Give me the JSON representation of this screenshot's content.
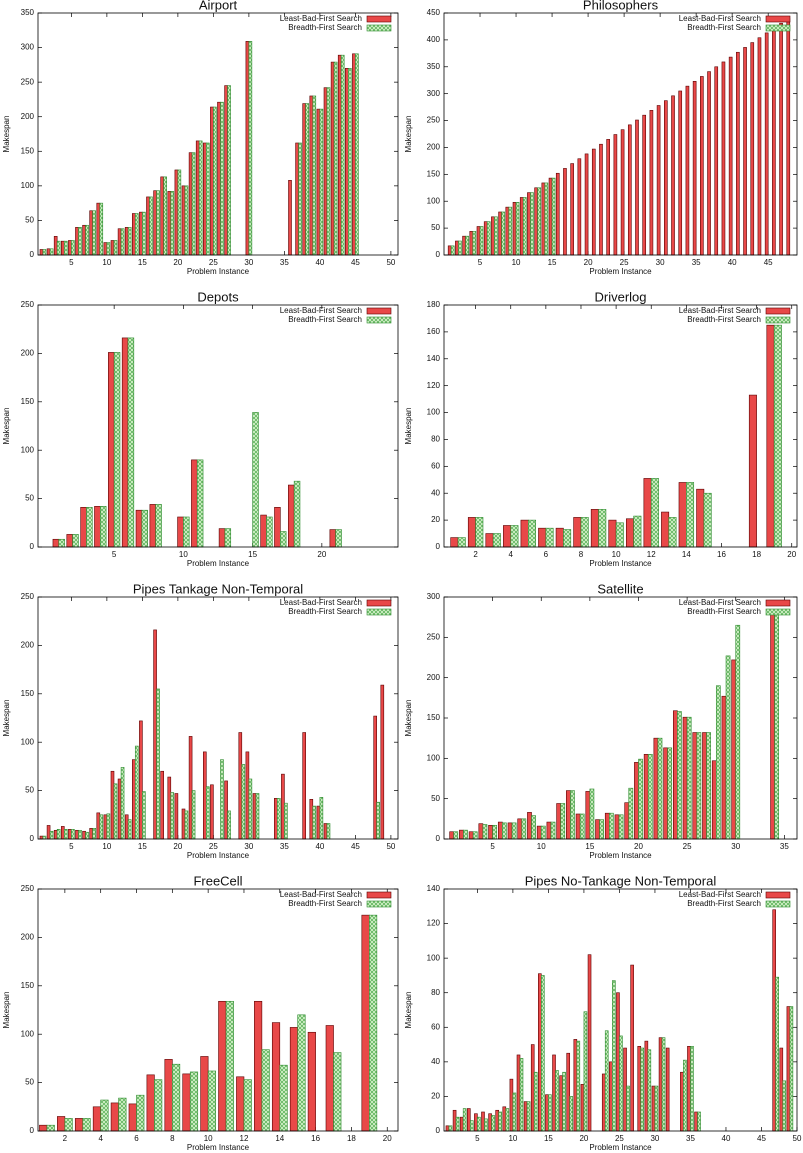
{
  "chart_data": [
    {
      "type": "bar",
      "title": "Airport",
      "xlabel": "Problem Instance",
      "ylabel": "Makespan",
      "x": [
        1,
        2,
        3,
        4,
        5,
        6,
        7,
        8,
        9,
        10,
        11,
        12,
        13,
        14,
        15,
        16,
        17,
        18,
        19,
        20,
        21,
        22,
        23,
        24,
        25,
        26,
        27,
        28,
        29,
        30,
        31,
        32,
        33,
        34,
        35,
        36,
        37,
        38,
        39,
        40,
        41,
        42,
        43,
        44,
        45
      ],
      "series": [
        {
          "name": "Least-Bad-First Search",
          "color": "#e84848",
          "values": [
            8,
            9,
            27,
            20,
            21,
            40,
            43,
            64,
            75,
            18,
            21,
            38,
            40,
            60,
            62,
            84,
            93,
            113,
            92,
            123,
            100,
            148,
            165,
            162,
            214,
            221,
            245,
            null,
            null,
            309,
            null,
            null,
            null,
            null,
            null,
            108,
            162,
            219,
            230,
            211,
            242,
            279,
            289,
            270,
            291
          ]
        },
        {
          "name": "Breadth-First Search",
          "color": "#d2f0c8",
          "values": [
            8,
            9,
            20,
            20,
            21,
            40,
            43,
            64,
            75,
            18,
            21,
            38,
            40,
            60,
            62,
            84,
            93,
            113,
            92,
            123,
            100,
            148,
            165,
            162,
            214,
            221,
            245,
            null,
            null,
            309,
            null,
            null,
            null,
            null,
            null,
            null,
            162,
            219,
            230,
            211,
            242,
            279,
            289,
            270,
            291
          ]
        }
      ],
      "xlim": [
        0.3,
        51
      ],
      "ylim": [
        0,
        350
      ],
      "xticks": [
        5,
        10,
        15,
        20,
        25,
        30,
        35,
        40,
        45,
        50
      ],
      "yticks": [
        0,
        50,
        100,
        150,
        200,
        250,
        300,
        350
      ],
      "legend": "upper right"
    },
    {
      "type": "bar",
      "title": "Philosophers",
      "xlabel": "Problem Instance",
      "ylabel": "Makespan",
      "x": [
        1,
        2,
        3,
        4,
        5,
        6,
        7,
        8,
        9,
        10,
        11,
        12,
        13,
        14,
        15,
        16,
        17,
        18,
        19,
        20,
        21,
        22,
        23,
        24,
        25,
        26,
        27,
        28,
        29,
        30,
        31,
        32,
        33,
        34,
        35,
        36,
        37,
        38,
        39,
        40,
        41,
        42,
        43,
        44,
        45,
        46,
        47,
        48
      ],
      "series": [
        {
          "name": "Least-Bad-First Search",
          "color": "#e84848",
          "values": [
            17,
            26,
            35,
            44,
            53,
            62,
            71,
            80,
            89,
            98,
            107,
            116,
            125,
            134,
            143,
            152,
            161,
            170,
            179,
            188,
            197,
            206,
            215,
            224,
            233,
            242,
            251,
            260,
            269,
            278,
            287,
            296,
            305,
            314,
            323,
            332,
            341,
            350,
            359,
            368,
            377,
            386,
            395,
            404,
            413,
            422,
            431,
            440
          ]
        },
        {
          "name": "Breadth-First Search",
          "color": "#d2f0c8",
          "values": [
            17,
            26,
            35,
            44,
            53,
            62,
            71,
            80,
            89,
            98,
            107,
            116,
            125,
            134,
            143,
            null,
            null,
            null,
            null,
            null,
            null,
            null,
            null,
            null,
            null,
            null,
            null,
            null,
            null,
            null,
            null,
            null,
            null,
            null,
            null,
            null,
            null,
            null,
            null,
            null,
            null,
            null,
            null,
            null,
            null,
            null,
            null,
            null
          ]
        }
      ],
      "xlim": [
        0,
        49
      ],
      "ylim": [
        0,
        450
      ],
      "xticks": [
        5,
        10,
        15,
        20,
        25,
        30,
        35,
        40,
        45
      ],
      "yticks": [
        0,
        50,
        100,
        150,
        200,
        250,
        300,
        350,
        400,
        450
      ],
      "legend": "upper right"
    },
    {
      "type": "bar",
      "title": "Depots",
      "xlabel": "Problem Instance",
      "ylabel": "Makespan",
      "x": [
        1,
        2,
        3,
        4,
        5,
        6,
        7,
        8,
        9,
        10,
        11,
        12,
        13,
        14,
        15,
        16,
        17,
        18,
        19,
        20,
        21
      ],
      "series": [
        {
          "name": "Least-Bad-First Search",
          "color": "#e84848",
          "values": [
            8,
            13,
            41,
            42,
            201,
            216,
            38,
            44,
            null,
            31,
            90,
            null,
            19,
            null,
            null,
            33,
            41,
            64,
            null,
            null,
            18
          ]
        },
        {
          "name": "Breadth-First Search",
          "color": "#d2f0c8",
          "values": [
            8,
            13,
            41,
            42,
            201,
            216,
            38,
            44,
            null,
            31,
            90,
            null,
            19,
            null,
            139,
            31,
            16,
            68,
            null,
            null,
            18
          ]
        }
      ],
      "xlim": [
        -0.5,
        25.5
      ],
      "ylim": [
        0,
        250
      ],
      "xticks": [
        5,
        10,
        15,
        20
      ],
      "yticks": [
        0,
        50,
        100,
        150,
        200,
        250
      ],
      "legend": "upper right"
    },
    {
      "type": "bar",
      "title": "Driverlog",
      "xlabel": "Problem Instance",
      "ylabel": "Makespan",
      "x": [
        1,
        2,
        3,
        4,
        5,
        6,
        7,
        8,
        9,
        10,
        11,
        12,
        13,
        14,
        15,
        16,
        17,
        18,
        19
      ],
      "series": [
        {
          "name": "Least-Bad-First Search",
          "color": "#e84848",
          "values": [
            7,
            22,
            10,
            16,
            20,
            14,
            14,
            22,
            28,
            20,
            21,
            51,
            26,
            48,
            43,
            null,
            null,
            113,
            165
          ]
        },
        {
          "name": "Breadth-First Search",
          "color": "#d2f0c8",
          "values": [
            7,
            22,
            10,
            16,
            20,
            14,
            13,
            22,
            28,
            18,
            23,
            51,
            22,
            48,
            40,
            null,
            null,
            null,
            165
          ]
        }
      ],
      "xlim": [
        0.2,
        20.3
      ],
      "ylim": [
        0,
        180
      ],
      "xticks": [
        2,
        4,
        6,
        8,
        10,
        12,
        14,
        16,
        18,
        20
      ],
      "yticks": [
        0,
        20,
        40,
        60,
        80,
        100,
        120,
        140,
        160,
        180
      ],
      "legend": "upper right"
    },
    {
      "type": "bar",
      "title": "Pipes Tankage Non-Temporal",
      "xlabel": "Problem Instance",
      "ylabel": "Makespan",
      "x": [
        1,
        2,
        3,
        4,
        5,
        6,
        7,
        8,
        9,
        10,
        11,
        12,
        13,
        14,
        15,
        16,
        17,
        18,
        19,
        20,
        21,
        22,
        23,
        24,
        25,
        26,
        27,
        28,
        29,
        30,
        31,
        32,
        33,
        34,
        35,
        36,
        37,
        38,
        39,
        40,
        41,
        42,
        43,
        44,
        45,
        46,
        47,
        48,
        49
      ],
      "series": [
        {
          "name": "Least-Bad-First Search",
          "color": "#e84848",
          "values": [
            3,
            14,
            9,
            13,
            10,
            9,
            8,
            11,
            27,
            25,
            70,
            62,
            25,
            82,
            122,
            null,
            216,
            70,
            64,
            47,
            31,
            106,
            null,
            90,
            56,
            null,
            60,
            null,
            110,
            90,
            47,
            null,
            null,
            42,
            67,
            null,
            null,
            110,
            41,
            34,
            16,
            null,
            null,
            null,
            null,
            null,
            null,
            127,
            159
          ]
        },
        {
          "name": "Breadth-First Search",
          "color": "#d2f0c8",
          "values": [
            3,
            8,
            10,
            10,
            10,
            9,
            7,
            11,
            25,
            26,
            57,
            74,
            20,
            96,
            49,
            null,
            155,
            null,
            48,
            null,
            29,
            50,
            null,
            54,
            null,
            82,
            29,
            null,
            77,
            62,
            47,
            null,
            null,
            42,
            37,
            null,
            null,
            null,
            34,
            43,
            16,
            null,
            null,
            null,
            null,
            null,
            null,
            38,
            null
          ]
        }
      ],
      "xlim": [
        0.3,
        51
      ],
      "ylim": [
        0,
        250
      ],
      "xticks": [
        5,
        10,
        15,
        20,
        25,
        30,
        35,
        40,
        45,
        50
      ],
      "yticks": [
        0,
        50,
        100,
        150,
        200,
        250
      ],
      "legend": "upper right"
    },
    {
      "type": "bar",
      "title": "Satellite",
      "xlabel": "Problem Instance",
      "ylabel": "Makespan",
      "x": [
        1,
        2,
        3,
        4,
        5,
        6,
        7,
        8,
        9,
        10,
        11,
        12,
        13,
        14,
        15,
        16,
        17,
        18,
        19,
        20,
        21,
        22,
        23,
        24,
        25,
        26,
        27,
        28,
        29,
        30,
        31,
        32,
        33,
        34
      ],
      "series": [
        {
          "name": "Least-Bad-First Search",
          "color": "#e84848",
          "values": [
            9,
            11,
            9,
            19,
            17,
            21,
            20,
            25,
            33,
            16,
            21,
            44,
            60,
            31,
            59,
            24,
            32,
            30,
            45,
            95,
            105,
            125,
            113,
            159,
            151,
            132,
            132,
            97,
            177,
            222,
            null,
            null,
            null,
            280
          ]
        },
        {
          "name": "Breadth-First Search",
          "color": "#d2f0c8",
          "values": [
            9,
            11,
            9,
            18,
            17,
            20,
            20,
            25,
            29,
            16,
            21,
            44,
            60,
            31,
            62,
            24,
            32,
            30,
            63,
            99,
            105,
            125,
            113,
            158,
            151,
            132,
            132,
            190,
            227,
            265,
            null,
            null,
            null,
            283
          ]
        }
      ],
      "xlim": [
        0,
        36.3
      ],
      "ylim": [
        0,
        300
      ],
      "xticks": [
        5,
        10,
        15,
        20,
        25,
        30,
        35
      ],
      "yticks": [
        0,
        50,
        100,
        150,
        200,
        250,
        300
      ],
      "legend": "upper right"
    },
    {
      "type": "bar",
      "title": "FreeCell",
      "xlabel": "Problem Instance",
      "ylabel": "Makespan",
      "x": [
        1,
        2,
        3,
        4,
        5,
        6,
        7,
        8,
        9,
        10,
        11,
        12,
        13,
        14,
        15,
        16,
        17,
        18,
        19
      ],
      "series": [
        {
          "name": "Least-Bad-First Search",
          "color": "#e84848",
          "values": [
            6,
            15,
            13,
            25,
            29,
            28,
            58,
            74,
            59,
            77,
            134,
            56,
            134,
            112,
            107,
            102,
            109,
            null,
            223
          ]
        },
        {
          "name": "Breadth-First Search",
          "color": "#d2f0c8",
          "values": [
            6,
            13,
            13,
            32,
            34,
            37,
            53,
            69,
            61,
            62,
            134,
            53,
            84,
            68,
            120,
            null,
            81,
            null,
            223
          ]
        }
      ],
      "xlim": [
        0.5,
        20.6
      ],
      "ylim": [
        0,
        250
      ],
      "xticks": [
        2,
        4,
        6,
        8,
        10,
        12,
        14,
        16,
        18,
        20
      ],
      "yticks": [
        0,
        50,
        100,
        150,
        200,
        250
      ],
      "legend": "upper right"
    },
    {
      "type": "bar",
      "title": "Pipes No-Tankage Non-Temporal",
      "xlabel": "Problem Instance",
      "ylabel": "Makespan",
      "x": [
        1,
        2,
        3,
        4,
        5,
        6,
        7,
        8,
        9,
        10,
        11,
        12,
        13,
        14,
        15,
        16,
        17,
        18,
        19,
        20,
        21,
        22,
        23,
        24,
        25,
        26,
        27,
        28,
        29,
        30,
        31,
        32,
        33,
        34,
        35,
        36,
        37,
        38,
        39,
        40,
        41,
        42,
        43,
        44,
        45,
        46,
        47,
        48,
        49
      ],
      "series": [
        {
          "name": "Least-Bad-First Search",
          "color": "#e84848",
          "values": [
            3,
            12,
            8,
            13,
            10,
            11,
            10,
            12,
            14,
            30,
            44,
            17,
            50,
            91,
            21,
            44,
            32,
            45,
            53,
            27,
            102,
            null,
            33,
            40,
            80,
            48,
            96,
            49,
            52,
            26,
            54,
            48,
            null,
            34,
            49,
            11,
            null,
            null,
            null,
            null,
            null,
            null,
            null,
            null,
            null,
            null,
            128,
            48,
            72
          ]
        },
        {
          "name": "Breadth-First Search",
          "color": "#d2f0c8",
          "values": [
            3,
            8,
            13,
            6,
            8,
            7,
            9,
            11,
            13,
            22,
            42,
            17,
            34,
            90,
            21,
            35,
            34,
            20,
            52,
            69,
            null,
            null,
            58,
            87,
            55,
            26,
            null,
            48,
            47,
            26,
            54,
            null,
            null,
            41,
            49,
            11,
            null,
            null,
            null,
            null,
            null,
            null,
            null,
            null,
            null,
            null,
            89,
            29,
            72
          ]
        }
      ],
      "xlim": [
        0.3,
        50
      ],
      "ylim": [
        0,
        140
      ],
      "xticks": [
        5,
        10,
        15,
        20,
        25,
        30,
        35,
        40,
        45,
        50
      ],
      "yticks": [
        0,
        20,
        40,
        60,
        80,
        100,
        120,
        140
      ],
      "legend": "upper right"
    }
  ]
}
